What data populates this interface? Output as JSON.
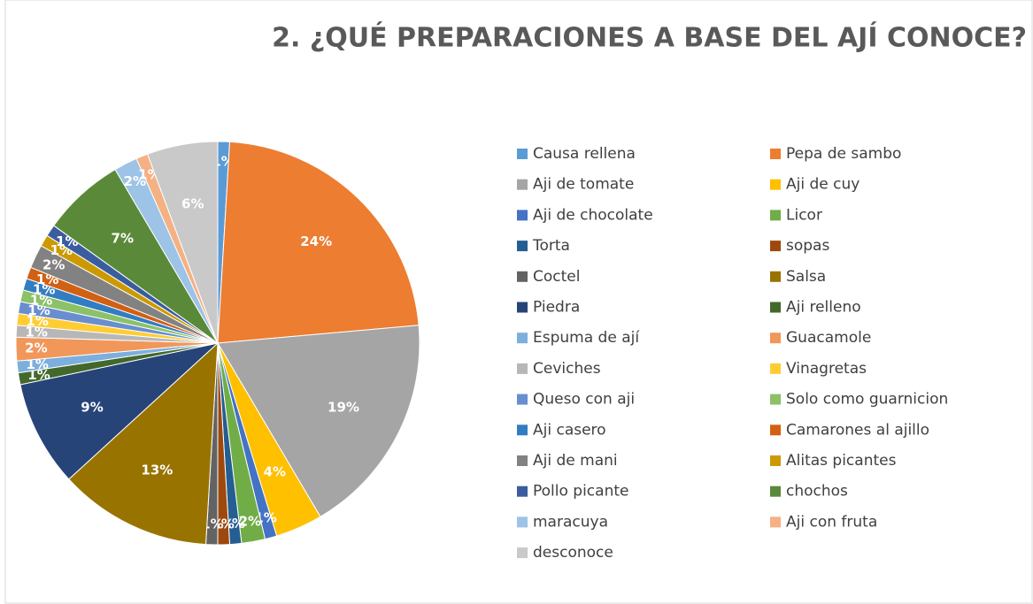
{
  "chart_data": {
    "type": "pie",
    "title": "2. ¿QUÉ PREPARACIONES A BASE DEL AJÍ CONOCE?",
    "categories": [
      "Causa rellena",
      "Pepa de sambo",
      "Aji de tomate",
      "Aji de  cuy",
      "Aji de chocolate",
      "Licor",
      "Torta",
      "sopas",
      "Coctel",
      "Salsa",
      "Piedra",
      "Aji relleno",
      "Espuma de ají",
      "Guacamole",
      "Ceviches",
      "Vinagretas",
      "Queso con aji",
      "Solo como guarnicion",
      "Aji casero",
      "Camarones al ajillo",
      "Aji de mani",
      "Alitas picantes",
      "Pollo picante",
      "chochos",
      "maracuya",
      "Aji con fruta",
      "desconoce"
    ],
    "values": [
      1,
      24,
      19,
      4,
      1,
      2,
      1,
      1,
      1,
      13,
      9,
      1,
      1,
      2,
      1,
      1,
      1,
      1,
      1,
      1,
      2,
      1,
      1,
      7,
      2,
      1,
      6
    ],
    "value_labels": [
      "1%",
      "24%",
      "19%",
      "4%",
      "1%",
      "2%",
      "1%",
      "1%",
      "1%",
      "13%",
      "9%",
      "1%",
      "1%",
      "2%",
      "1%",
      "1%",
      "1%",
      "1%",
      "1%",
      "1%",
      "2%",
      "1%",
      "1%",
      "7%",
      "2%",
      "1%",
      "6%"
    ],
    "colors": [
      "#5b9bd5",
      "#ed7d31",
      "#a5a5a5",
      "#ffc000",
      "#4472c4",
      "#70ad47",
      "#255e91",
      "#9e480e",
      "#636363",
      "#997300",
      "#264478",
      "#43682b",
      "#7cafdd",
      "#f1975a",
      "#b7b7b7",
      "#ffcd33",
      "#698ed0",
      "#8cc168",
      "#327dc2",
      "#d26012",
      "#828282",
      "#cc9a00",
      "#3a5da0",
      "#5a8a39",
      "#9dc3e6",
      "#f4b183",
      "#c9c9c9"
    ],
    "legend": "right"
  }
}
